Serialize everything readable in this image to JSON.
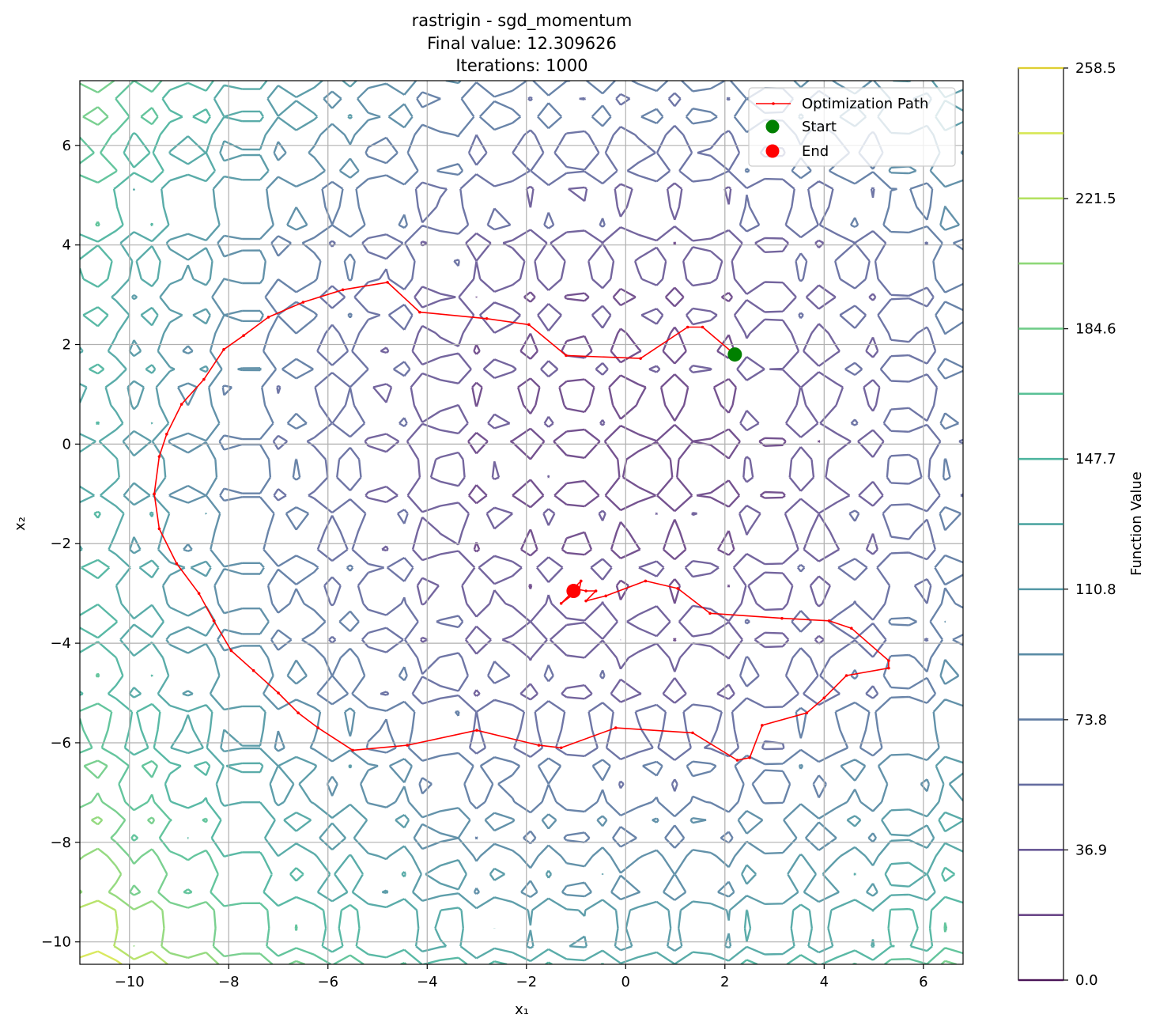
{
  "chart_data": {
    "type": "contour",
    "function": "rastrigin",
    "title": {
      "line1": "rastrigin - sgd_momentum",
      "line2": "Final value: 12.309626",
      "line3": "Iterations: 1000"
    },
    "xlabel": "x₁",
    "ylabel": "x₂",
    "xlim": [
      -11.0,
      6.8
    ],
    "ylim": [
      -10.45,
      7.3
    ],
    "x_ticks": [
      -10,
      -8,
      -6,
      -4,
      -2,
      0,
      2,
      4,
      6
    ],
    "y_ticks": [
      -10,
      -8,
      -6,
      -4,
      -2,
      0,
      2,
      4,
      6
    ],
    "x_tick_labels": [
      "−10",
      "−8",
      "−6",
      "−4",
      "−2",
      "0",
      "2",
      "4",
      "6"
    ],
    "y_tick_labels": [
      "−10",
      "−8",
      "−6",
      "−4",
      "−2",
      "0",
      "2",
      "4",
      "6"
    ],
    "grid": true,
    "contour_levels": [
      18.46,
      36.93,
      55.39,
      73.85,
      92.32,
      110.78,
      129.24,
      147.71,
      166.17,
      184.63,
      203.1,
      221.56,
      240.02
    ],
    "colorbar": {
      "label": "Function Value",
      "min": 0.0,
      "max": 258.5,
      "tick_values": [
        0.0,
        36.9,
        73.8,
        110.8,
        147.7,
        184.6,
        221.5,
        258.5
      ],
      "tick_labels": [
        "0.0",
        "36.9",
        "73.8",
        "110.8",
        "147.7",
        "184.6",
        "221.5",
        "258.5"
      ]
    },
    "path": {
      "name": "Optimization Path",
      "color": "#ff0000",
      "points": [
        [
          2.2,
          1.8
        ],
        [
          1.55,
          2.35
        ],
        [
          1.25,
          2.35
        ],
        [
          0.3,
          1.72
        ],
        [
          -1.2,
          1.78
        ],
        [
          -1.95,
          2.4
        ],
        [
          -2.8,
          2.52
        ],
        [
          -4.15,
          2.65
        ],
        [
          -4.8,
          3.25
        ],
        [
          -5.7,
          3.1
        ],
        [
          -6.5,
          2.85
        ],
        [
          -7.2,
          2.55
        ],
        [
          -7.7,
          2.18
        ],
        [
          -8.1,
          1.9
        ],
        [
          -8.5,
          1.3
        ],
        [
          -8.95,
          0.8
        ],
        [
          -9.25,
          0.2
        ],
        [
          -9.4,
          -0.25
        ],
        [
          -9.5,
          -1.0
        ],
        [
          -9.4,
          -1.7
        ],
        [
          -9.05,
          -2.4
        ],
        [
          -8.6,
          -3.0
        ],
        [
          -8.3,
          -3.55
        ],
        [
          -7.95,
          -4.15
        ],
        [
          -7.5,
          -4.55
        ],
        [
          -7.0,
          -5.0
        ],
        [
          -6.6,
          -5.4
        ],
        [
          -6.2,
          -5.7
        ],
        [
          -5.5,
          -6.15
        ],
        [
          -4.4,
          -6.05
        ],
        [
          -3.0,
          -5.75
        ],
        [
          -1.75,
          -6.05
        ],
        [
          -1.3,
          -6.1
        ],
        [
          -0.2,
          -5.7
        ],
        [
          1.35,
          -5.8
        ],
        [
          2.25,
          -6.35
        ],
        [
          2.5,
          -6.3
        ],
        [
          2.75,
          -5.65
        ],
        [
          3.65,
          -5.4
        ],
        [
          4.0,
          -5.1
        ],
        [
          4.45,
          -4.65
        ],
        [
          5.3,
          -4.5
        ],
        [
          5.3,
          -4.35
        ],
        [
          4.55,
          -3.7
        ],
        [
          4.1,
          -3.55
        ],
        [
          3.15,
          -3.5
        ],
        [
          1.7,
          -3.4
        ],
        [
          1.05,
          -2.9
        ],
        [
          0.4,
          -2.75
        ],
        [
          -0.4,
          -3.05
        ],
        [
          -0.8,
          -3.15
        ],
        [
          -0.6,
          -2.95
        ],
        [
          -0.8,
          -2.95
        ],
        [
          -1.05,
          -2.9
        ],
        [
          -0.9,
          -2.75
        ],
        [
          -0.95,
          -3.0
        ],
        [
          -1.1,
          -3.05
        ],
        [
          -1.3,
          -3.2
        ],
        [
          -1.05,
          -2.95
        ]
      ]
    },
    "start_point": {
      "label": "Start",
      "x": 2.2,
      "y": 1.8,
      "color": "#008000"
    },
    "end_point": {
      "label": "End",
      "x": -1.05,
      "y": -2.95,
      "color": "#ff0000"
    },
    "legend_position": "top-right"
  }
}
